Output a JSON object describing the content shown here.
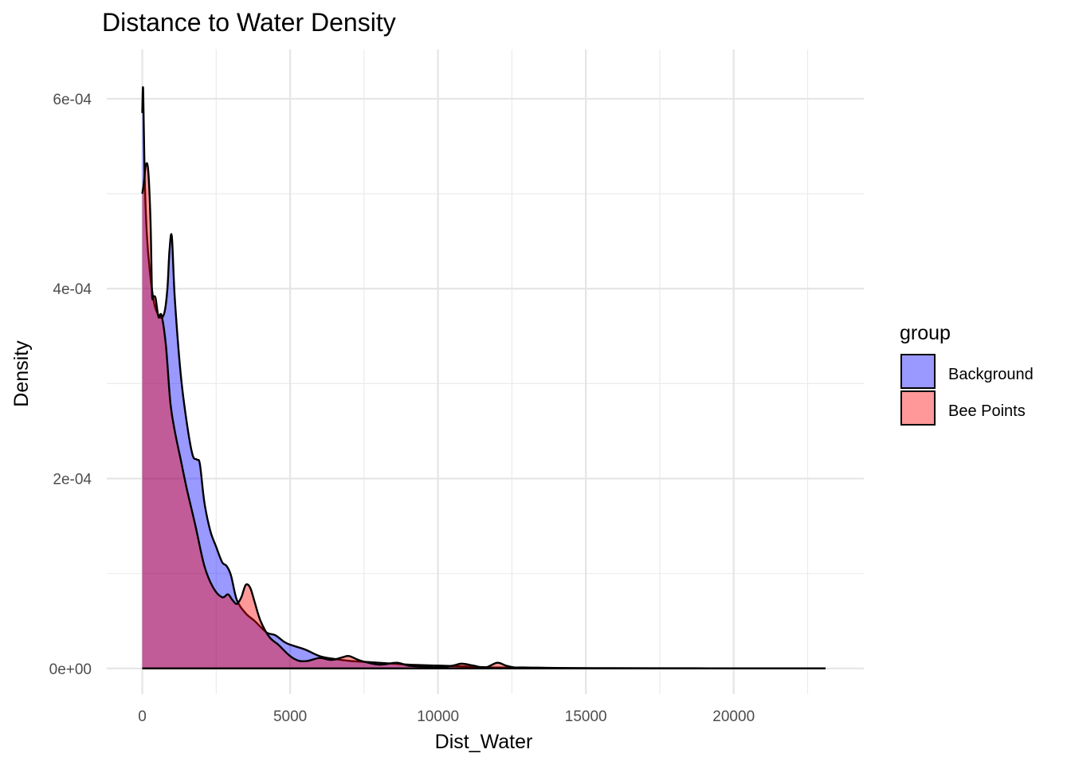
{
  "chart_data": {
    "type": "area",
    "title": "Distance to Water Density",
    "xlabel": "Dist_Water",
    "ylabel": "Density",
    "xlim": [
      -1200,
      24400
    ],
    "ylim": [
      -2.7e-05,
      0.000652
    ],
    "x_ticks": [
      0,
      5000,
      10000,
      15000,
      20000
    ],
    "x_tick_labels": [
      "0",
      "5000",
      "10000",
      "15000",
      "20000"
    ],
    "y_ticks": [
      0,
      0.0002,
      0.0004,
      0.0006
    ],
    "y_tick_labels": [
      "0e+00",
      "2e-04",
      "4e-04",
      "6e-04"
    ],
    "grid": true,
    "legend": {
      "title": "group",
      "position": "right",
      "entries": [
        "Background",
        "Bee Points"
      ]
    },
    "series": [
      {
        "name": "Background",
        "fill": "#0000ff",
        "fill_opacity": 0.4,
        "outline": "#000000",
        "x": [
          0,
          30,
          80,
          150,
          250,
          400,
          600,
          750,
          850,
          920,
          1000,
          1100,
          1300,
          1500,
          1700,
          1850,
          1950,
          2100,
          2300,
          2500,
          2700,
          2850,
          3000,
          3200,
          3500,
          3800,
          4200,
          4500,
          4800,
          5000,
          5500,
          6000,
          6500,
          7000,
          7500,
          8000,
          9000,
          10000,
          11000,
          12000,
          13000,
          14000,
          16000,
          18000,
          20000,
          22000,
          23100
        ],
        "y": [
          0.000585,
          0.00061,
          0.00052,
          0.00046,
          0.00042,
          0.000385,
          0.00037,
          0.000375,
          0.0004,
          0.00044,
          0.000455,
          0.00039,
          0.00031,
          0.00026,
          0.000225,
          0.00022,
          0.000215,
          0.000175,
          0.000145,
          0.000128,
          0.000112,
          0.000108,
          9.8e-05,
          7.2e-05,
          5.8e-05,
          5e-05,
          3.8e-05,
          3.5e-05,
          2.8e-05,
          2.5e-05,
          2e-05,
          1.3e-05,
          1e-05,
          8e-06,
          7e-06,
          6e-06,
          4e-06,
          3e-06,
          2e-06,
          1e-06,
          1e-06,
          5e-07,
          3e-07,
          2e-07,
          1e-07,
          1e-07,
          0.0
        ]
      },
      {
        "name": "Bee Points",
        "fill": "#ff0000",
        "fill_opacity": 0.4,
        "outline": "#000000",
        "x": [
          0,
          50,
          120,
          200,
          280,
          330,
          380,
          450,
          550,
          650,
          800,
          950,
          1100,
          1300,
          1500,
          1800,
          2100,
          2400,
          2700,
          2900,
          3050,
          3200,
          3350,
          3500,
          3650,
          3800,
          4000,
          4300,
          4600,
          5000,
          5300,
          5600,
          6000,
          6400,
          6800,
          7000,
          7400,
          8000,
          8600,
          9000,
          9500,
          10000,
          10500,
          10800,
          11200,
          11600,
          12000,
          12300,
          12600,
          13000,
          13500,
          14000,
          16000,
          18000,
          20000,
          23100
        ],
        "y": [
          0.0005,
          0.00051,
          0.00053,
          0.000525,
          0.00047,
          0.000395,
          0.000392,
          0.00039,
          0.00037,
          0.000372,
          0.00034,
          0.00028,
          0.00025,
          0.00022,
          0.00019,
          0.00015,
          0.000108,
          8.5e-05,
          7.5e-05,
          7.8e-05,
          7.2e-05,
          6.8e-05,
          7.5e-05,
          8.8e-05,
          8.5e-05,
          7e-05,
          5e-05,
          3.3e-05,
          2.5e-05,
          1.3e-05,
          8e-06,
          8e-06,
          1.1e-05,
          9e-06,
          1.2e-05,
          1.3e-05,
          8e-06,
          4e-06,
          6e-06,
          3e-06,
          2e-06,
          1e-06,
          3e-06,
          5e-06,
          3e-06,
          1e-06,
          6e-06,
          3e-06,
          1e-06,
          5e-07,
          2e-07,
          1e-07,
          0.0,
          0.0,
          0.0,
          0.0
        ]
      }
    ]
  }
}
